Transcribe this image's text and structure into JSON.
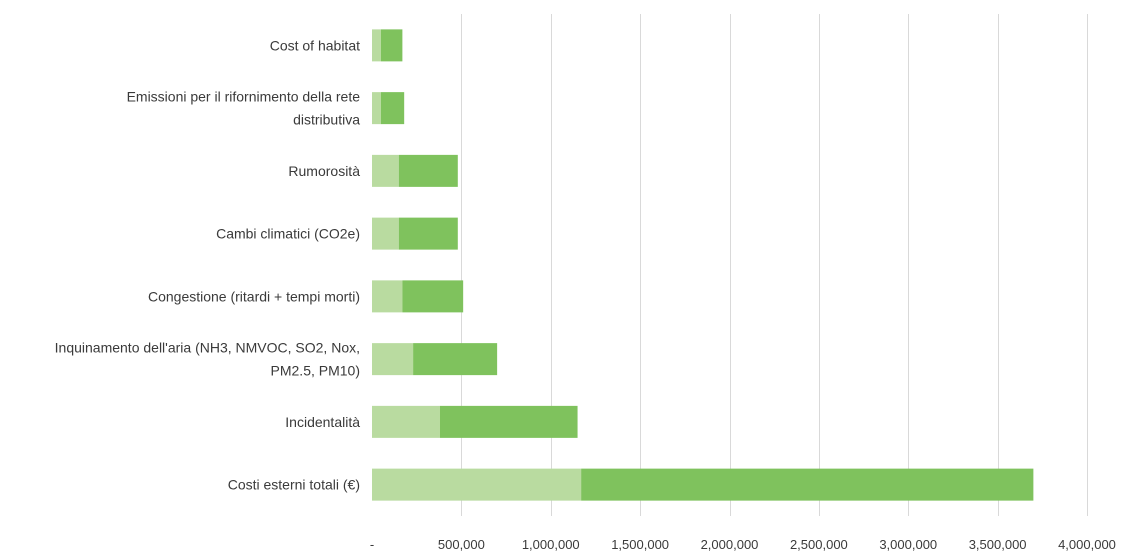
{
  "chart_data": {
    "type": "bar",
    "orientation": "horizontal",
    "stacked": true,
    "categories": [
      [
        "Cost of habitat"
      ],
      [
        "Emissioni per il rifornimento della rete",
        "distributiva"
      ],
      [
        "Rumorosità"
      ],
      [
        "Cambi climatici (CO2e)"
      ],
      [
        "Congestione (ritardi + tempi morti)"
      ],
      [
        "Inquinamento dell'aria (NH3, NMVOC, SO2, Nox,",
        "PM2.5, PM10)"
      ],
      [
        "Incidentalità"
      ],
      [
        "Costi esterni totali (€)"
      ]
    ],
    "series": [
      {
        "values": [
          50000,
          50000,
          150000,
          150000,
          170000,
          230000,
          380000,
          1170000
        ],
        "color": "#b9dba0"
      },
      {
        "values": [
          120000,
          130000,
          330000,
          330000,
          340000,
          470000,
          770000,
          2530000
        ],
        "color": "#7fc25d"
      }
    ],
    "xlim": [
      0,
      4000000
    ],
    "xticks": [
      0,
      500000,
      1000000,
      1500000,
      2000000,
      2500000,
      3000000,
      3500000,
      4000000
    ],
    "xtick_labels": [
      "-",
      "500,000",
      "1,000,000",
      "1,500,000",
      "2,000,000",
      "2,500,000",
      "3,000,000",
      "3,500,000",
      "4,000,000"
    ],
    "grid": true,
    "legend": "none"
  }
}
